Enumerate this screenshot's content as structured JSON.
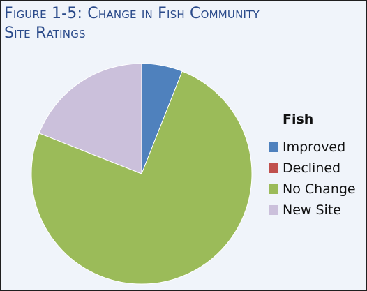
{
  "figure": {
    "title_line1": "Figure 1-5: Change in Fish Community",
    "title_line2": "Site Ratings"
  },
  "colors": {
    "title": "#2a4a8a",
    "background": "#f0f4fa",
    "border": "#1f1f1f"
  },
  "chart_data": {
    "type": "pie",
    "title": "Figure 1-5: Change in Fish Community Site Ratings",
    "legend_title": "Fish",
    "legend_position": "right",
    "categories": [
      "Improved",
      "Declined",
      "No Change",
      "New Site"
    ],
    "values": [
      6,
      0,
      75,
      19
    ],
    "colors": [
      "#4f81bd",
      "#c0504d",
      "#9bbb59",
      "#cbc0db"
    ]
  }
}
